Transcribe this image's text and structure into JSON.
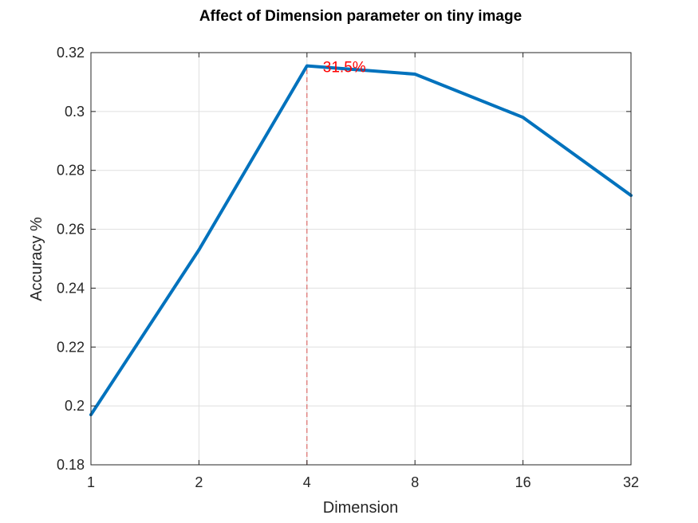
{
  "chart_data": {
    "type": "line",
    "title": "Affect of Dimension parameter on tiny image",
    "xlabel": "Dimension",
    "ylabel": "Accuracy %",
    "x_scale": "log2",
    "categories": [
      "1",
      "2",
      "4",
      "8",
      "16",
      "32"
    ],
    "x": [
      1,
      2,
      4,
      8,
      16,
      32
    ],
    "series": [
      {
        "values": [
          0.197,
          0.253,
          0.3155,
          0.3127,
          0.298,
          0.2715
        ],
        "color": "#0072BD"
      }
    ],
    "ylim": [
      0.18,
      0.32
    ],
    "yticks": [
      "0.18",
      "0.2",
      "0.22",
      "0.24",
      "0.26",
      "0.28",
      "0.3",
      "0.32"
    ],
    "grid": true,
    "annotations": [
      {
        "text": "31.5%",
        "x": 4,
        "y": 0.3155,
        "color": "#FF0000",
        "marker": "vertical-dashed-line"
      }
    ]
  }
}
